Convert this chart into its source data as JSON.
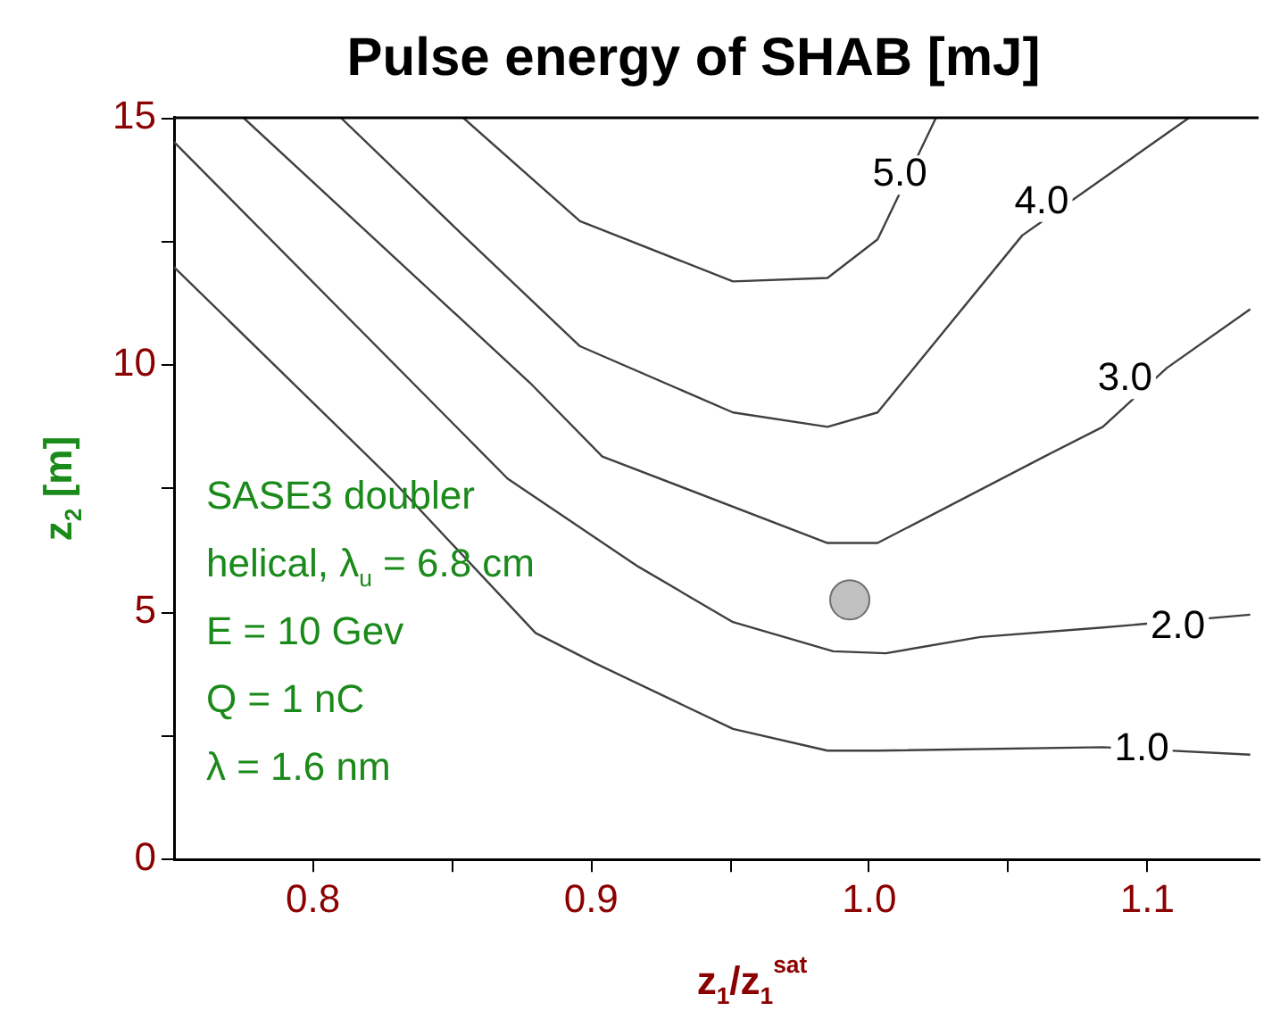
{
  "chart_data": {
    "type": "line",
    "title": "Pulse energy of SHAB [mJ]",
    "xlabel": "z$_{1}$/z$_{1}$$^{sat}$",
    "ylabel": "z$_{2}$ [m]",
    "xlim": [
      0.75,
      1.14
    ],
    "xticks": [
      {
        "value": 0.8,
        "label": "0.8"
      },
      {
        "value": 0.85,
        "label": null
      },
      {
        "value": 0.9,
        "label": "0.9"
      },
      {
        "value": 0.95,
        "label": null
      },
      {
        "value": 1.0,
        "label": "1.0"
      },
      {
        "value": 1.05,
        "label": null
      },
      {
        "value": 1.1,
        "label": "1.1"
      }
    ],
    "ylim": [
      0,
      15
    ],
    "yticks": [
      0,
      {
        "value": 2.5,
        "label": null
      },
      5,
      {
        "value": 7.5,
        "label": null
      },
      10,
      {
        "value": 12.5,
        "label": null
      },
      15
    ],
    "grid": false,
    "legend": false,
    "marker": "none",
    "line_style": "solid",
    "series": [
      {
        "color": "#404040",
        "x": [
          0.75,
          0.828,
          0.88,
          0.901,
          0.951,
          0.985,
          1.003,
          1.084,
          1.137
        ],
        "values": [
          11.98,
          7.7,
          4.58,
          3.98,
          2.64,
          2.2,
          2.2,
          2.27,
          2.12
        ]
      },
      {
        "color": "#404040",
        "x": [
          0.75,
          0.87,
          0.917,
          0.951,
          0.987,
          1.006,
          1.04,
          1.084,
          1.137
        ],
        "values": [
          14.51,
          7.7,
          5.92,
          4.8,
          4.21,
          4.17,
          4.5,
          4.69,
          4.95
        ]
      },
      {
        "color": "#404040",
        "x": [
          0.775,
          0.878,
          0.904,
          0.985,
          1.003,
          1.063,
          1.084,
          1.107,
          1.137
        ],
        "values": [
          15,
          9.64,
          8.15,
          6.4,
          6.4,
          8.15,
          8.75,
          9.94,
          11.13
        ]
      },
      {
        "color": "#404040",
        "x": [
          0.81,
          0.854,
          0.896,
          0.951,
          0.985,
          1.003,
          1.055,
          1.115
        ],
        "values": [
          15,
          12.62,
          10.38,
          9.04,
          8.75,
          9.04,
          12.62,
          15
        ]
      },
      {
        "color": "#404040",
        "x": [
          0.854,
          0.896,
          0.951,
          0.985,
          1.003,
          1.024
        ],
        "values": [
          15,
          12.91,
          11.69,
          11.76,
          12.54,
          15
        ]
      },
      {
        "type": "scatter",
        "marker": "circle",
        "color": "#c0c0c0",
        "x": [
          0.993
        ],
        "values": [
          5.25
        ]
      }
    ],
    "annotations": [
      {
        "text": "5.0",
        "x": 1.011,
        "y": 13.84
      },
      {
        "text": "4.0",
        "x": 1.062,
        "y": 13.29
      },
      {
        "text": "3.0",
        "x": 1.092,
        "y": 9.71
      },
      {
        "text": "2.0",
        "x": 1.111,
        "y": 4.69
      },
      {
        "text": "1.0",
        "x": 1.098,
        "y": 2.23
      },
      "SASE3 doubler",
      "helical, λ$_{u}$ = 6.8 cm",
      "E = 10 Gev",
      "Q = 1 nC",
      "λ = 1.6 nm"
    ]
  }
}
